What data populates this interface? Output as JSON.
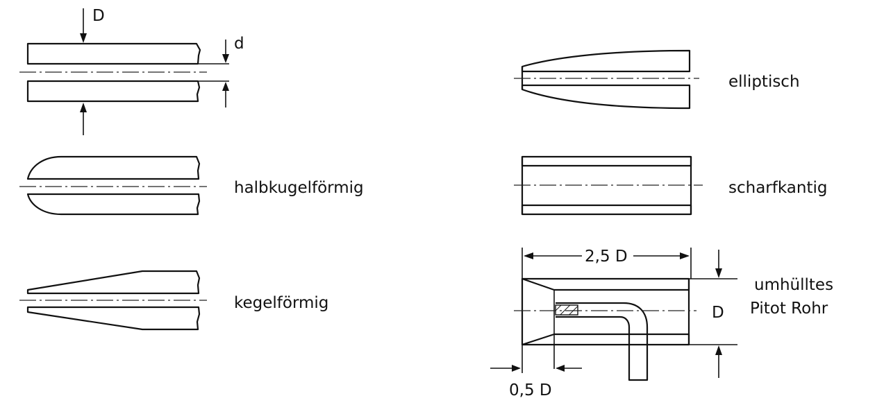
{
  "probes": {
    "flat": {
      "dim_D": "D",
      "dim_d": "d"
    },
    "hemispherical": {
      "label": "halbkugelförmig"
    },
    "conical": {
      "label": "kegelförmig"
    },
    "elliptical": {
      "label": "elliptisch"
    },
    "sharp_edged": {
      "label": "scharfkantig"
    },
    "shrouded_pitot": {
      "label_line1": "umhülltes",
      "label_line2": "Pitot Rohr",
      "dim_length": "2,5 D",
      "dim_diameter": "D",
      "dim_inlet": "0,5 D"
    }
  },
  "colors": {
    "line": "#111111",
    "background": "#ffffff"
  }
}
